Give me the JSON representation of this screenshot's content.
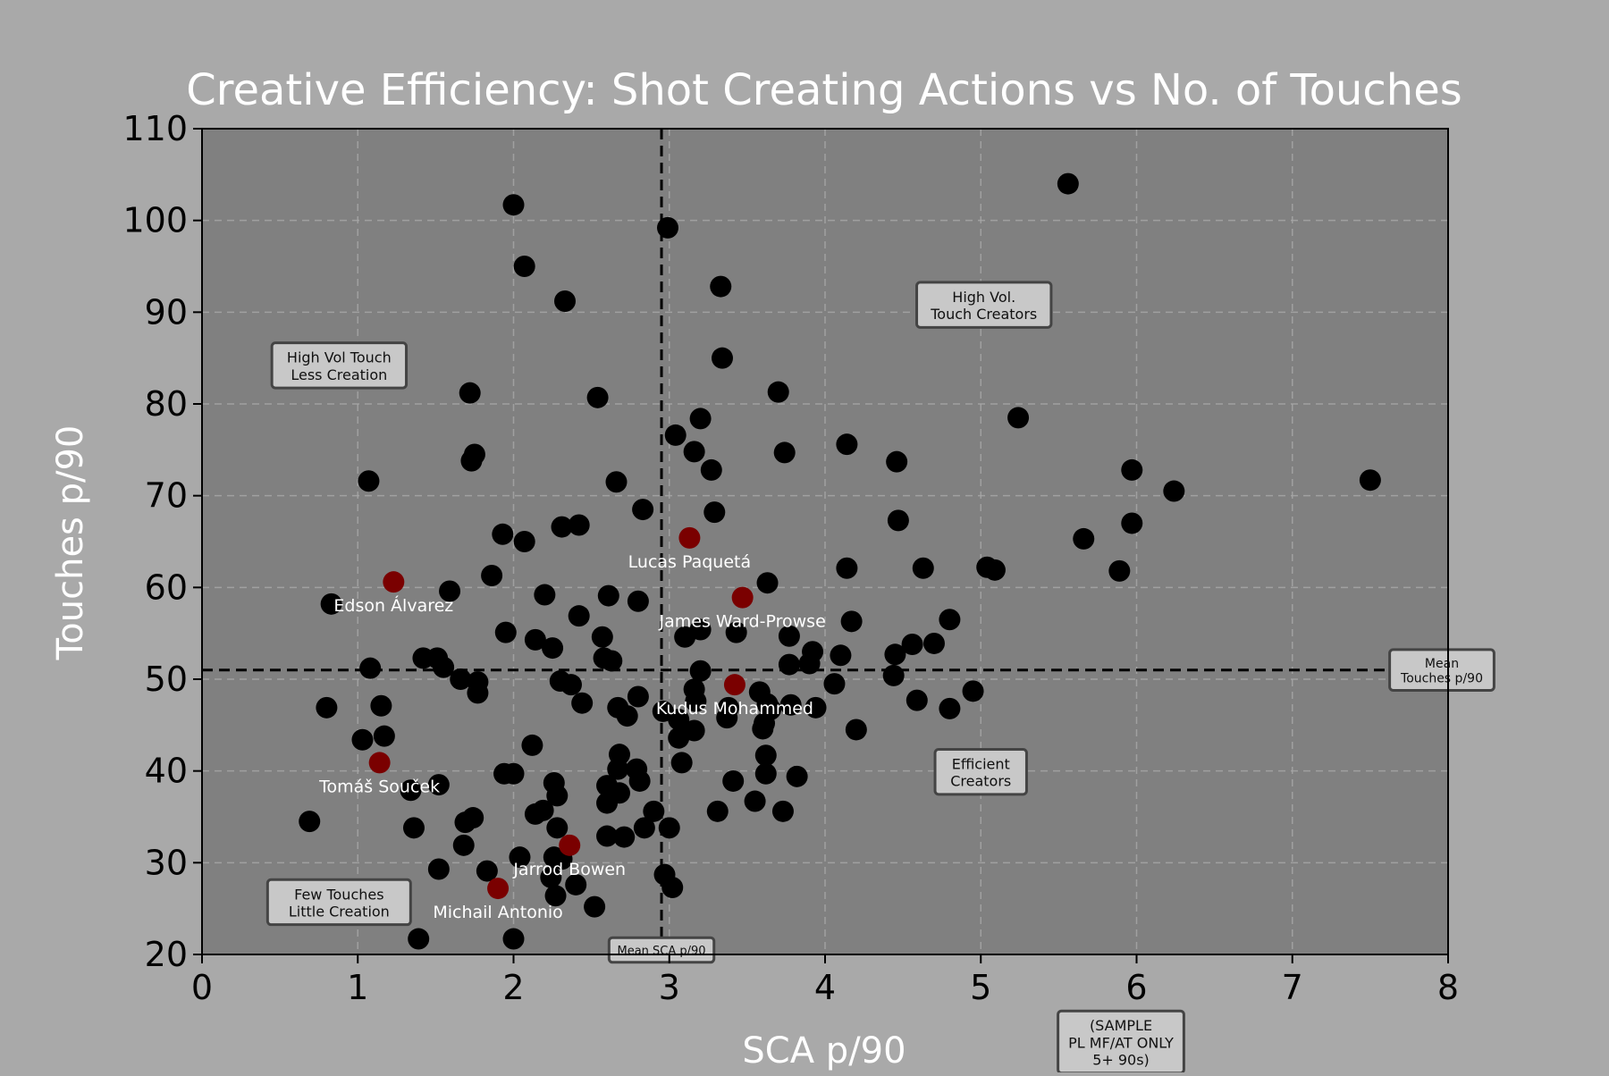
{
  "chart_data": {
    "type": "scatter",
    "title": "Creative Efficiency: Shot Creating Actions vs No. of Touches",
    "xlabel": "SCA p/90",
    "ylabel": "Touches p/90",
    "xlim": [
      0,
      8
    ],
    "ylim": [
      20,
      110
    ],
    "xticks": [
      0,
      1,
      2,
      3,
      4,
      5,
      6,
      7,
      8
    ],
    "yticks": [
      20,
      30,
      40,
      50,
      60,
      70,
      80,
      90,
      100,
      110
    ],
    "grid": true,
    "colors": {
      "figure_bg": "#a9a9a9",
      "plot_bg": "#808080",
      "point": "#000000",
      "highlight": "#7a0000",
      "title": "#ffffff",
      "axis_label": "#ffffff",
      "tick_label": "#000000",
      "player_label": "#ffffff"
    },
    "mean_lines": {
      "x": 2.95,
      "y": 51,
      "x_label": "Mean SCA p/90",
      "y_label": "Mean\nTouches p/90"
    },
    "quadrant_labels": [
      {
        "text": "High Vol Touch\nLess Creation",
        "x": 0.88,
        "y": 84.2
      },
      {
        "text": "High Vol.\nTouch Creators",
        "x": 5.02,
        "y": 90.8
      },
      {
        "text": "Efficient\nCreators",
        "x": 5.0,
        "y": 39.9
      },
      {
        "text": "Few Touches\nLittle Creation",
        "x": 0.88,
        "y": 25.7
      }
    ],
    "footnote": "(SAMPLE\nPL MF/AT ONLY\n5+ 90s)",
    "points": [
      [
        5.56,
        104
      ],
      [
        2.0,
        101.7
      ],
      [
        2.99,
        99.2
      ],
      [
        2.07,
        95
      ],
      [
        2.33,
        91.2
      ],
      [
        3.33,
        92.8
      ],
      [
        3.34,
        85
      ],
      [
        1.72,
        81.2
      ],
      [
        2.54,
        80.7
      ],
      [
        3.7,
        81.3
      ],
      [
        3.2,
        78.4
      ],
      [
        3.04,
        76.6
      ],
      [
        5.24,
        78.5
      ],
      [
        1.75,
        74.5
      ],
      [
        1.73,
        73.8
      ],
      [
        3.16,
        74.8
      ],
      [
        3.74,
        74.7
      ],
      [
        4.14,
        75.6
      ],
      [
        4.46,
        73.7
      ],
      [
        3.27,
        72.8
      ],
      [
        1.07,
        71.6
      ],
      [
        2.66,
        71.5
      ],
      [
        5.97,
        72.8
      ],
      [
        6.24,
        70.5
      ],
      [
        7.5,
        71.7
      ],
      [
        3.29,
        68.2
      ],
      [
        2.83,
        68.5
      ],
      [
        4.47,
        67.3
      ],
      [
        5.97,
        67
      ],
      [
        5.66,
        65.3
      ],
      [
        1.93,
        65.8
      ],
      [
        2.07,
        65
      ],
      [
        2.31,
        66.6
      ],
      [
        2.42,
        66.8
      ],
      [
        1.86,
        61.3
      ],
      [
        3.63,
        60.5
      ],
      [
        4.14,
        62.1
      ],
      [
        4.63,
        62.1
      ],
      [
        5.04,
        62.2
      ],
      [
        5.09,
        61.9
      ],
      [
        5.89,
        61.8
      ],
      [
        0.83,
        58.2
      ],
      [
        1.59,
        59.6
      ],
      [
        2.2,
        59.2
      ],
      [
        2.61,
        59.1
      ],
      [
        2.8,
        58.5
      ],
      [
        1.95,
        55.1
      ],
      [
        2.42,
        56.9
      ],
      [
        2.57,
        54.6
      ],
      [
        3.1,
        54.6
      ],
      [
        3.2,
        55.4
      ],
      [
        3.43,
        55.1
      ],
      [
        3.77,
        54.7
      ],
      [
        4.17,
        56.3
      ],
      [
        4.8,
        56.5
      ],
      [
        2.14,
        54.3
      ],
      [
        2.25,
        53.4
      ],
      [
        1.42,
        52.3
      ],
      [
        1.51,
        52.3
      ],
      [
        1.55,
        51.3
      ],
      [
        2.58,
        52.3
      ],
      [
        2.63,
        52
      ],
      [
        3.92,
        53
      ],
      [
        4.1,
        52.6
      ],
      [
        4.45,
        52.7
      ],
      [
        4.56,
        53.8
      ],
      [
        4.7,
        53.9
      ],
      [
        1.08,
        51.2
      ],
      [
        3.2,
        50.9
      ],
      [
        3.77,
        51.6
      ],
      [
        3.9,
        51.7
      ],
      [
        1.66,
        50
      ],
      [
        1.77,
        49.7
      ],
      [
        1.77,
        48.5
      ],
      [
        2.3,
        49.8
      ],
      [
        2.37,
        49.4
      ],
      [
        3.16,
        48.9
      ],
      [
        4.06,
        49.5
      ],
      [
        4.44,
        50.4
      ],
      [
        4.95,
        48.7
      ],
      [
        0.8,
        46.9
      ],
      [
        1.15,
        47.1
      ],
      [
        2.44,
        47.4
      ],
      [
        2.67,
        46.9
      ],
      [
        2.73,
        46
      ],
      [
        2.8,
        48.1
      ],
      [
        2.96,
        46.5
      ],
      [
        3.06,
        45.6
      ],
      [
        3.17,
        47.6
      ],
      [
        3.37,
        45.8
      ],
      [
        3.38,
        46.9
      ],
      [
        3.58,
        48.6
      ],
      [
        3.63,
        47.3
      ],
      [
        3.65,
        46.7
      ],
      [
        3.78,
        47.2
      ],
      [
        3.94,
        46.9
      ],
      [
        4.59,
        47.7
      ],
      [
        4.8,
        46.8
      ],
      [
        1.03,
        43.4
      ],
      [
        1.17,
        43.8
      ],
      [
        2.12,
        42.8
      ],
      [
        3.06,
        43.6
      ],
      [
        3.16,
        44.4
      ],
      [
        3.6,
        44.6
      ],
      [
        3.61,
        45.2
      ],
      [
        4.2,
        44.5
      ],
      [
        2.68,
        41.8
      ],
      [
        3.08,
        40.9
      ],
      [
        3.62,
        41.7
      ],
      [
        1.94,
        39.7
      ],
      [
        2.0,
        39.7
      ],
      [
        2.67,
        40.2
      ],
      [
        2.79,
        40.2
      ],
      [
        2.81,
        38.9
      ],
      [
        3.62,
        39.7
      ],
      [
        3.82,
        39.4
      ],
      [
        1.34,
        37.9
      ],
      [
        1.52,
        38.5
      ],
      [
        2.26,
        38.7
      ],
      [
        2.28,
        37.3
      ],
      [
        2.6,
        38.4
      ],
      [
        2.68,
        37.6
      ],
      [
        3.41,
        38.9
      ],
      [
        2.19,
        35.7
      ],
      [
        2.14,
        35.3
      ],
      [
        2.6,
        36.5
      ],
      [
        2.9,
        35.6
      ],
      [
        3.31,
        35.6
      ],
      [
        3.55,
        36.7
      ],
      [
        3.73,
        35.6
      ],
      [
        0.69,
        34.5
      ],
      [
        1.36,
        33.8
      ],
      [
        1.69,
        34.4
      ],
      [
        1.74,
        34.9
      ],
      [
        2.28,
        33.8
      ],
      [
        2.6,
        32.9
      ],
      [
        2.71,
        32.8
      ],
      [
        2.84,
        33.8
      ],
      [
        3.0,
        33.8
      ],
      [
        1.68,
        31.9
      ],
      [
        2.04,
        30.6
      ],
      [
        2.26,
        30.6
      ],
      [
        2.31,
        30.4
      ],
      [
        1.52,
        29.3
      ],
      [
        1.83,
        29.1
      ],
      [
        2.24,
        28.4
      ],
      [
        2.4,
        27.6
      ],
      [
        2.97,
        28.7
      ],
      [
        3.02,
        27.3
      ],
      [
        2.27,
        26.4
      ],
      [
        2.52,
        25.2
      ],
      [
        1.39,
        21.7
      ],
      [
        2.0,
        21.7
      ]
    ],
    "highlights": [
      {
        "name": "Lucas Paquetá",
        "x": 3.13,
        "y": 65.4
      },
      {
        "name": "Edson Álvarez",
        "x": 1.23,
        "y": 60.6
      },
      {
        "name": "James Ward-Prowse",
        "x": 3.47,
        "y": 58.9
      },
      {
        "name": "Kudus Mohammed",
        "x": 3.42,
        "y": 49.4
      },
      {
        "name": "Tomáš Souček",
        "x": 1.14,
        "y": 40.9
      },
      {
        "name": "Jarrod Bowen",
        "x": 2.36,
        "y": 31.9
      },
      {
        "name": "Michail Antonio",
        "x": 1.9,
        "y": 27.2
      }
    ]
  }
}
